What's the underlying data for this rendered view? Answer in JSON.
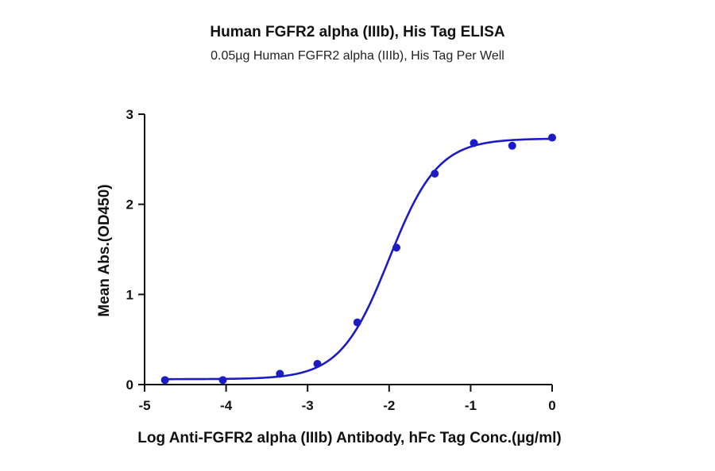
{
  "chart_data": {
    "type": "scatter",
    "title": "Human FGFR2 alpha (IIIb), His Tag ELISA",
    "subtitle": "0.05µg Human FGFR2 alpha (IIIb), His Tag Per Well",
    "xlabel": "Log Anti-FGFR2 alpha (IIIb) Antibody, hFc Tag Conc.(µg/ml)",
    "ylabel": "Mean Abs.(OD450)",
    "xlim": [
      -5,
      0
    ],
    "ylim": [
      0,
      3
    ],
    "xticks": [
      "-5",
      "-4",
      "-3",
      "-2",
      "-1",
      "0"
    ],
    "yticks": [
      "0",
      "1",
      "2",
      "3"
    ],
    "grid": false,
    "legend": null,
    "series": [
      {
        "name": "Mean Abs.(OD450)",
        "color": "#1c1cc4",
        "marker": "circle",
        "x": [
          -4.75,
          -4.04,
          -3.34,
          -2.88,
          -2.39,
          -1.91,
          -1.44,
          -0.96,
          -0.49,
          0.0
        ],
        "y": [
          0.05,
          0.05,
          0.12,
          0.23,
          0.69,
          1.52,
          2.34,
          2.68,
          2.65,
          2.74
        ]
      }
    ],
    "fit": {
      "type": "4PL sigmoidal curve",
      "color": "#1c1cc4",
      "bottom": 0.06,
      "top": 2.73,
      "log_ec50": -2.0,
      "hill": 1.45,
      "x_start": -4.75,
      "x_end": 0.0
    }
  }
}
